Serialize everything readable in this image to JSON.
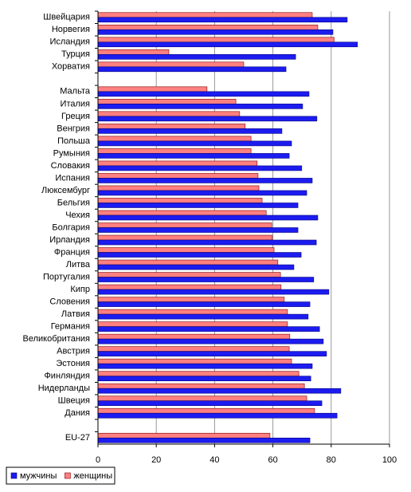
{
  "chart_data": {
    "type": "barh",
    "categories": [
      "Швейцария",
      "Норвегия",
      "Исландия",
      "Турция",
      "Хорватия",
      null,
      "Мальта",
      "Италия",
      "Греция",
      "Венгрия",
      "Польша",
      "Румыния",
      "Словакия",
      "Испания",
      "Люксембург",
      "Бельгия",
      "Чехия",
      "Болгария",
      "Ирландия",
      "Франция",
      "Литва",
      "Португалия",
      "Кипр",
      "Словения",
      "Латвия",
      "Германия",
      "Великобритания",
      "Австрия",
      "Эстония",
      "Финляндия",
      "Нидерланды",
      "Швеция",
      "Дания",
      null,
      "EU-27"
    ],
    "series": [
      {
        "name": "мужчины",
        "color": "#1c1cf0",
        "values": [
          85.5,
          80.6,
          89,
          67.8,
          64.5,
          null,
          72.4,
          70.2,
          75.1,
          63.1,
          66.4,
          65.6,
          69.9,
          73.5,
          71.6,
          68.6,
          75.4,
          68.6,
          74.9,
          69.7,
          67.2,
          74,
          79.2,
          72.7,
          72.1,
          76,
          77.3,
          78.4,
          73.5,
          73,
          83.3,
          76.8,
          82,
          null,
          72.7
        ]
      },
      {
        "name": "женщины",
        "color": "#ff8080",
        "values": [
          73.5,
          75.4,
          81,
          24.3,
          50,
          null,
          37.4,
          47.3,
          48.6,
          50.5,
          52.5,
          52.5,
          54.6,
          54.9,
          55.2,
          56.3,
          57.7,
          59.6,
          59.8,
          60.4,
          61.7,
          62.6,
          62.8,
          63.9,
          65,
          65,
          65.8,
          65.6,
          66.4,
          68.9,
          70.8,
          71.6,
          74.3,
          null,
          59
        ]
      }
    ],
    "xlim": [
      0,
      100
    ],
    "xticks": [
      0,
      20,
      40,
      60,
      80,
      100
    ],
    "grid": true,
    "legend": "bottom-left"
  }
}
